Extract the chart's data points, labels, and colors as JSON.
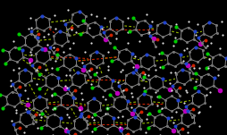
{
  "background_color": "#000000",
  "figsize": [
    2.55,
    1.51
  ],
  "dpi": 100,
  "atom_C": "#777777",
  "atom_N": "#2244cc",
  "atom_O": "#cc2200",
  "atom_H": "#dddddd",
  "atom_Cl": "#00cc00",
  "atom_I": "#bb00bb",
  "bond_color": "#888888",
  "hbond_green": "#99bb00",
  "hbond_red": "#cc2200",
  "ring_r": 0.028
}
